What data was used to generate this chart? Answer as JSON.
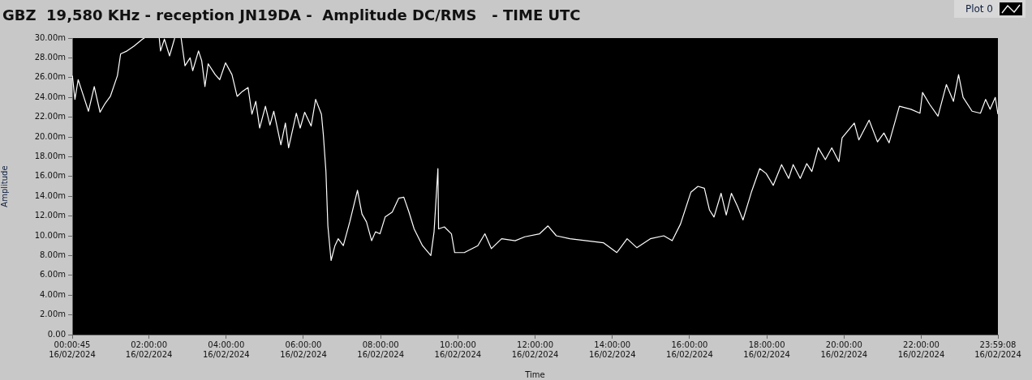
{
  "chart_data": {
    "type": "line",
    "title": "GBZ  19,580 KHz - reception JN19DA -  Amplitude DC/RMS   - TIME UTC",
    "xlabel": "Time",
    "ylabel": "Amplitude",
    "legend": "top right",
    "marker": "none",
    "line_style": "solid",
    "xlim": [
      "2024-02-16T00:00:45",
      "2024-02-16T23:59:08"
    ],
    "xticks": [
      {
        "value": "2024-02-16T00:00:45",
        "label": "00:00:45\n16/02/2024"
      },
      {
        "value": "2024-02-16T02:00",
        "label": "02:00:00\n16/02/2024"
      },
      {
        "value": "2024-02-16T04:00",
        "label": "04:00:00\n16/02/2024"
      },
      {
        "value": "2024-02-16T06:00",
        "label": "06:00:00\n16/02/2024"
      },
      {
        "value": "2024-02-16T08:00",
        "label": "08:00:00\n16/02/2024"
      },
      {
        "value": "2024-02-16T10:00",
        "label": "10:00:00\n16/02/2024"
      },
      {
        "value": "2024-02-16T12:00",
        "label": "12:00:00\n16/02/2024"
      },
      {
        "value": "2024-02-16T14:00",
        "label": "14:00:00\n16/02/2024"
      },
      {
        "value": "2024-02-16T16:00",
        "label": "16:00:00\n16/02/2024"
      },
      {
        "value": "2024-02-16T18:00",
        "label": "18:00:00\n16/02/2024"
      },
      {
        "value": "2024-02-16T20:00",
        "label": "20:00:00\n16/02/2024"
      },
      {
        "value": "2024-02-16T22:00",
        "label": "22:00:00\n16/02/2024"
      },
      {
        "value": "2024-02-16T23:59:08",
        "label": "23:59:08\n16/02/2024"
      }
    ],
    "ylim": [
      0,
      30
    ],
    "yticks": [
      {
        "value": 0,
        "label": "0.00"
      },
      {
        "value": 2,
        "label": "2.00m"
      },
      {
        "value": 4,
        "label": "4.00m"
      },
      {
        "value": 6,
        "label": "6.00m"
      },
      {
        "value": 8,
        "label": "8.00m"
      },
      {
        "value": 10,
        "label": "10.00m"
      },
      {
        "value": 12,
        "label": "12.00m"
      },
      {
        "value": 14,
        "label": "14.00m"
      },
      {
        "value": 16,
        "label": "16.00m"
      },
      {
        "value": 18,
        "label": "18.00m"
      },
      {
        "value": 20,
        "label": "20.00m"
      },
      {
        "value": 22,
        "label": "22.00m"
      },
      {
        "value": 24,
        "label": "24.00m"
      },
      {
        "value": 26,
        "label": "26.00m"
      },
      {
        "value": 28,
        "label": "28.00m"
      },
      {
        "value": 30,
        "label": "30.00m"
      }
    ],
    "series": [
      {
        "name": "Plot 0",
        "color": "#ffffff",
        "x": [
          "2024-02-16T00:01",
          "2024-02-16T00:05",
          "2024-02-16T00:10",
          "2024-02-16T00:16",
          "2024-02-16T00:26",
          "2024-02-16T00:35",
          "2024-02-16T00:44",
          "2024-02-16T00:52",
          "2024-02-16T01:00",
          "2024-02-16T01:11",
          "2024-02-16T01:16",
          "2024-02-16T01:26",
          "2024-02-16T01:37",
          "2024-02-16T01:50",
          "2024-02-16T01:53",
          "2024-02-16T02:06",
          "2024-02-16T02:16",
          "2024-02-16T02:18",
          "2024-02-16T02:24",
          "2024-02-16T02:32",
          "2024-02-16T02:40",
          "2024-02-16T02:45",
          "2024-02-16T02:50",
          "2024-02-16T02:56",
          "2024-02-16T03:04",
          "2024-02-16T03:08",
          "2024-02-16T03:17",
          "2024-02-16T03:22",
          "2024-02-16T03:27",
          "2024-02-16T03:32",
          "2024-02-16T03:43",
          "2024-02-16T03:50",
          "2024-02-16T03:59",
          "2024-02-16T04:09",
          "2024-02-16T04:17",
          "2024-02-16T04:25",
          "2024-02-16T04:34",
          "2024-02-16T04:40",
          "2024-02-16T04:46",
          "2024-02-16T04:52",
          "2024-02-16T05:01",
          "2024-02-16T05:08",
          "2024-02-16T05:14",
          "2024-02-16T05:25",
          "2024-02-16T05:32",
          "2024-02-16T05:37",
          "2024-02-16T05:49",
          "2024-02-16T05:55",
          "2024-02-16T06:02",
          "2024-02-16T06:12",
          "2024-02-16T06:19",
          "2024-02-16T06:28",
          "2024-02-16T06:31",
          "2024-02-16T06:35",
          "2024-02-16T06:38",
          "2024-02-16T06:43",
          "2024-02-16T06:49",
          "2024-02-16T06:54",
          "2024-02-16T07:02",
          "2024-02-16T07:12",
          "2024-02-16T07:24",
          "2024-02-16T07:31",
          "2024-02-16T07:38",
          "2024-02-16T07:46",
          "2024-02-16T07:52",
          "2024-02-16T07:59",
          "2024-02-16T08:07",
          "2024-02-16T08:18",
          "2024-02-16T08:28",
          "2024-02-16T08:36",
          "2024-02-16T08:44",
          "2024-02-16T08:52",
          "2024-02-16T09:05",
          "2024-02-16T09:18",
          "2024-02-16T09:23",
          "2024-02-16T09:29",
          "2024-02-16T09:30",
          "2024-02-16T09:39",
          "2024-02-16T09:50",
          "2024-02-16T09:55",
          "2024-02-16T10:10",
          "2024-02-16T10:31",
          "2024-02-16T10:42",
          "2024-02-16T10:52",
          "2024-02-16T11:08",
          "2024-02-16T11:29",
          "2024-02-16T11:44",
          "2024-02-16T12:07",
          "2024-02-16T12:20",
          "2024-02-16T12:33",
          "2024-02-16T12:54",
          "2024-02-16T13:20",
          "2024-02-16T13:46",
          "2024-02-16T14:07",
          "2024-02-16T14:23",
          "2024-02-16T14:38",
          "2024-02-16T14:59",
          "2024-02-16T15:20",
          "2024-02-16T15:33",
          "2024-02-16T15:46",
          "2024-02-16T16:02",
          "2024-02-16T16:13",
          "2024-02-16T16:23",
          "2024-02-16T16:31",
          "2024-02-16T16:38",
          "2024-02-16T16:49",
          "2024-02-16T16:57",
          "2024-02-16T17:05",
          "2024-02-16T17:15",
          "2024-02-16T17:23",
          "2024-02-16T17:36",
          "2024-02-16T17:49",
          "2024-02-16T17:59",
          "2024-02-16T18:10",
          "2024-02-16T18:23",
          "2024-02-16T18:34",
          "2024-02-16T18:41",
          "2024-02-16T18:52",
          "2024-02-16T19:02",
          "2024-02-16T19:10",
          "2024-02-16T19:20",
          "2024-02-16T19:31",
          "2024-02-16T19:41",
          "2024-02-16T19:52",
          "2024-02-16T19:57",
          "2024-02-16T20:16",
          "2024-02-16T20:23",
          "2024-02-16T20:39",
          "2024-02-16T20:52",
          "2024-02-16T21:02",
          "2024-02-16T21:10",
          "2024-02-16T21:26",
          "2024-02-16T21:44",
          "2024-02-16T21:58",
          "2024-02-16T22:02",
          "2024-02-16T22:13",
          "2024-02-16T22:26",
          "2024-02-16T22:39",
          "2024-02-16T22:50",
          "2024-02-16T22:58",
          "2024-02-16T23:05",
          "2024-02-16T23:19",
          "2024-02-16T23:32",
          "2024-02-16T23:40",
          "2024-02-16T23:47",
          "2024-02-16T23:55",
          "2024-02-16T23:59:08"
        ],
        "values": [
          26.2,
          23.8,
          25.8,
          24.6,
          22.6,
          25.1,
          22.5,
          23.4,
          24.1,
          26.2,
          28.4,
          28.7,
          29.2,
          29.9,
          30,
          null,
          30,
          28.7,
          29.9,
          28.2,
          30,
          null,
          30,
          27.2,
          28.0,
          26.7,
          28.7,
          27.7,
          25.1,
          27.4,
          26.3,
          25.8,
          27.5,
          26.3,
          24.1,
          24.6,
          25.0,
          22.3,
          23.6,
          20.9,
          23.1,
          21.2,
          22.6,
          19.2,
          21.4,
          18.9,
          22.4,
          20.9,
          22.5,
          21.1,
          23.8,
          22.3,
          20.2,
          16.5,
          11.0,
          7.5,
          9.0,
          9.7,
          9.0,
          11.4,
          14.6,
          12.2,
          11.4,
          9.5,
          10.4,
          10.2,
          11.9,
          12.4,
          13.8,
          13.9,
          12.4,
          10.7,
          9.0,
          8.0,
          10.4,
          16.8,
          10.7,
          10.9,
          10.2,
          8.3,
          8.3,
          9.0,
          10.2,
          8.7,
          9.7,
          9.5,
          9.9,
          10.2,
          11.0,
          10.0,
          9.7,
          9.5,
          9.3,
          8.3,
          9.7,
          8.8,
          9.7,
          10.0,
          9.5,
          11.2,
          14.4,
          15.0,
          14.8,
          12.6,
          11.9,
          14.3,
          12.1,
          14.3,
          12.9,
          11.6,
          14.4,
          16.8,
          16.3,
          15.1,
          17.2,
          15.8,
          17.2,
          15.8,
          17.3,
          16.5,
          18.9,
          17.7,
          18.9,
          17.5,
          19.9,
          21.4,
          19.7,
          21.7,
          19.5,
          20.4,
          19.4,
          23.1,
          22.8,
          22.4,
          24.5,
          23.3,
          22.1,
          25.3,
          23.6,
          26.3,
          24.0,
          22.6,
          22.4,
          23.8,
          22.8,
          24.0,
          22.3
        ]
      }
    ]
  }
}
